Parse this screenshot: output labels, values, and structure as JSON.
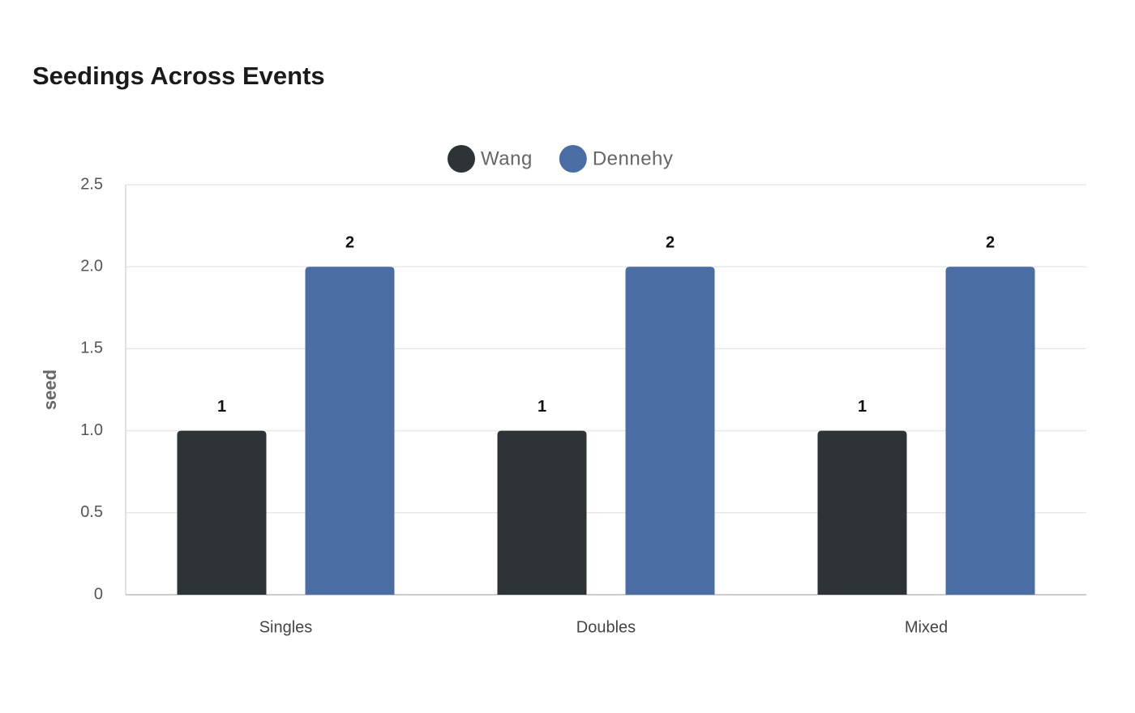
{
  "chart_data": {
    "type": "bar",
    "title": "Seedings Across Events",
    "y_label": "seed",
    "categories": [
      "Singles",
      "Doubles",
      "Mixed"
    ],
    "series": [
      {
        "name": "Wang",
        "color": "#2e3436",
        "values": [
          1,
          1,
          1
        ]
      },
      {
        "name": "Dennehy",
        "color": "#4a6da3",
        "values": [
          2,
          2,
          2
        ]
      }
    ],
    "ylim": [
      0,
      2.5
    ],
    "yticks": [
      0,
      0.5,
      {
        "value": 1,
        "label": "1.0"
      },
      1.5,
      {
        "value": 2,
        "label": "2.0"
      },
      2.5
    ],
    "grid": true
  }
}
